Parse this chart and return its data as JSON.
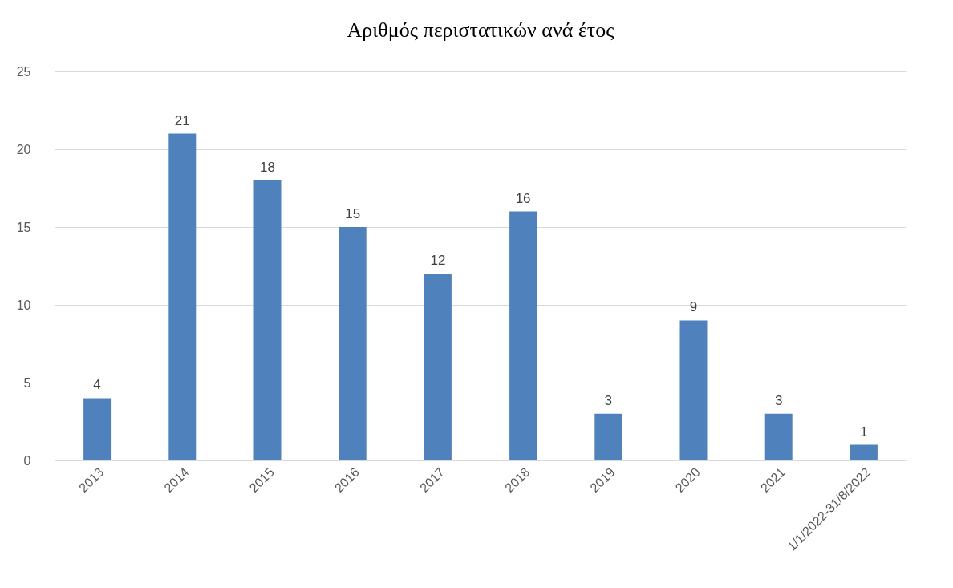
{
  "chart_data": {
    "type": "bar",
    "title": "Αριθμός περιστατικών ανά έτος",
    "categories": [
      "2013",
      "2014",
      "2015",
      "2016",
      "2017",
      "2018",
      "2019",
      "2020",
      "2021",
      "1/1/2022-31/8/2022"
    ],
    "values": [
      4,
      21,
      18,
      15,
      12,
      16,
      3,
      9,
      3,
      1
    ],
    "color": "#4f81bd",
    "ylim": [
      0,
      25
    ],
    "yticks": [
      0,
      5,
      10,
      15,
      20,
      25
    ],
    "grid": "y",
    "data_labels": true
  }
}
